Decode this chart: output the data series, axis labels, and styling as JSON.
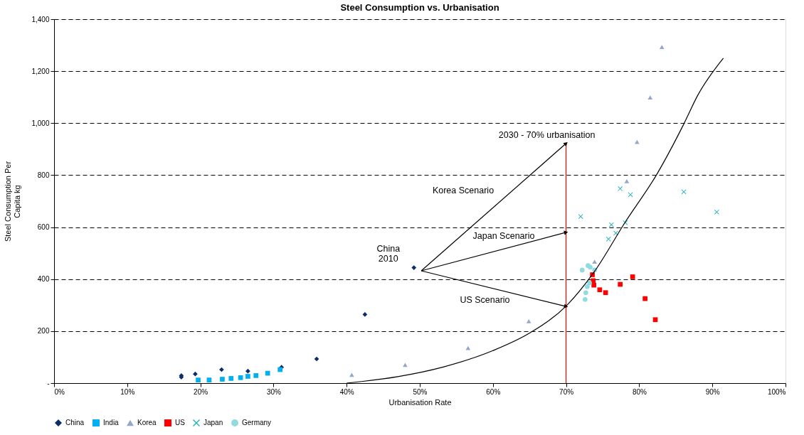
{
  "chart_data": {
    "type": "scatter",
    "title": "Steel Consumption vs. Urbanisation",
    "xlabel": "Urbanisation Rate",
    "ylabel": "Steel Consumption Per Capita kg",
    "xlim": [
      0,
      100
    ],
    "ylim": [
      0,
      1400
    ],
    "xticks": [
      {
        "value": 0,
        "label": "0%"
      },
      {
        "value": 10,
        "label": "10%"
      },
      {
        "value": 20,
        "label": "20%"
      },
      {
        "value": 30,
        "label": "30%"
      },
      {
        "value": 40,
        "label": "40%"
      },
      {
        "value": 50,
        "label": "50%"
      },
      {
        "value": 60,
        "label": "60%"
      },
      {
        "value": 70,
        "label": "70%"
      },
      {
        "value": 80,
        "label": "80%"
      },
      {
        "value": 90,
        "label": "90%"
      },
      {
        "value": 100,
        "label": "100%"
      }
    ],
    "yticks": [
      {
        "value": 0,
        "label": "-"
      },
      200,
      400,
      600,
      800,
      {
        "value": 1000,
        "label": "1,000"
      },
      {
        "value": 1200,
        "label": "1,200"
      },
      {
        "value": 1400,
        "label": "1,400"
      }
    ],
    "grid": "y",
    "legend": "bottom",
    "series": [
      {
        "name": "China",
        "color": "#0b2e6b",
        "marker": "diamond",
        "x": [
          17.4,
          17.4,
          19.3,
          22.9,
          26.5,
          31.1,
          35.9,
          42.5,
          49.2
        ],
        "values": [
          23,
          29,
          35,
          52,
          46,
          61,
          93,
          264,
          444
        ]
      },
      {
        "name": "India",
        "color": "#00b0f0",
        "marker": "square",
        "x": [
          19.7,
          21.2,
          23.0,
          24.2,
          25.5,
          26.5,
          27.6,
          29.2,
          30.9
        ],
        "values": [
          12,
          12,
          15,
          18,
          21,
          26,
          29,
          38,
          52
        ]
      },
      {
        "name": "Korea",
        "color": "#96a8c8",
        "marker": "triangle",
        "x": [
          40.7,
          48.0,
          56.6,
          64.9,
          73.9,
          78.3,
          79.7,
          81.5,
          83.1
        ],
        "values": [
          32,
          70,
          135,
          238,
          467,
          777,
          928,
          1099,
          1293
        ]
      },
      {
        "name": "US",
        "color": "#ff0000",
        "marker": "square",
        "x": [
          73.6,
          73.7,
          73.8,
          74.6,
          75.4,
          77.4,
          79.1,
          80.8,
          82.2
        ],
        "values": [
          417,
          394,
          377,
          359,
          348,
          380,
          409,
          325,
          244
        ]
      },
      {
        "name": "Japan",
        "color": "#1fb3c0",
        "marker": "cross",
        "x": [
          72.0,
          77.4,
          78.8,
          86.1,
          76.2,
          78.1,
          76.8,
          75.8,
          90.6
        ],
        "values": [
          641,
          748,
          725,
          736,
          609,
          617,
          577,
          554,
          658
        ]
      },
      {
        "name": "Germany",
        "color": "#8fdbe0",
        "marker": "circle",
        "x": [
          72.2,
          73.0,
          73.3,
          73.9,
          73.2,
          72.9,
          72.7,
          72.6
        ],
        "values": [
          435,
          452,
          446,
          435,
          386,
          371,
          348,
          322
        ]
      },
      {
        "type": "line",
        "color": "#000000",
        "x": [
          40,
          47,
          53.2,
          60,
          65.1,
          70.1,
          73.8,
          78.1,
          82.4,
          86.1,
          88,
          91.5
        ],
        "values": [
          0,
          25,
          62,
          125,
          194,
          299,
          426,
          620,
          803,
          997,
          1107,
          1250
        ]
      },
      {
        "type": "line",
        "color": "#ff0000",
        "x": [
          70,
          70
        ],
        "values": [
          0,
          922
        ]
      },
      {
        "type": "line",
        "color": "#000000",
        "x": [
          50.2,
          70
        ],
        "values": [
          432,
          922
        ]
      },
      {
        "type": "line",
        "color": "#000000",
        "x": [
          50.2,
          70
        ],
        "values": [
          432,
          580
        ]
      },
      {
        "type": "line",
        "color": "#000000",
        "x": [
          50.2,
          70
        ],
        "values": [
          432,
          295
        ]
      }
    ],
    "annotations": [
      {
        "text": "2030 - 70% urbanisation",
        "x": 70,
        "y": 922
      },
      "Korea Scenario",
      {
        "text": "Japan Scenario",
        "x": 60.8,
        "y": 511
      },
      {
        "text": "US Scenario",
        "x": 58.9,
        "y": 372
      },
      {
        "text": "China\n2010",
        "x": 49.2,
        "y": 444
      }
    ]
  }
}
